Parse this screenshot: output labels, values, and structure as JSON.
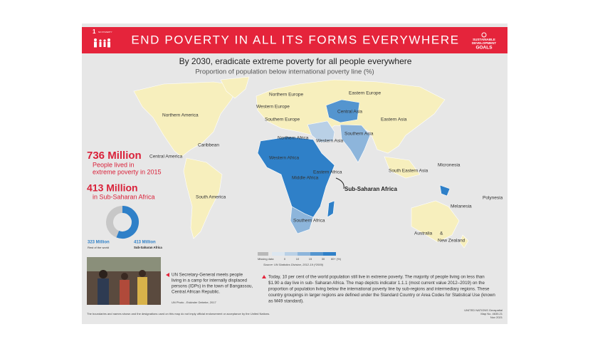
{
  "header": {
    "goal_number": "1",
    "goal_label": "NO POVERTY",
    "title": "END POVERTY IN ALL ITS FORMS EVERYWHERE",
    "sdg_logo": [
      "SUSTAINABLE",
      "DEVELOPMENT",
      "GOALS"
    ]
  },
  "subtitle": "By 2030, eradicate extreme poverty for all people everywhere",
  "subtitle2": "Proportion of population below international poverty line (%)",
  "regions": [
    "Northern America",
    "Caribbean",
    "Central America",
    "South America",
    "Northern Europe",
    "Western Europe",
    "Southern Europe",
    "Eastern Europe",
    "Central Asia",
    "Eastern Asia",
    "Northern Africa",
    "Western Asia",
    "Southern Asia",
    "Western Africa",
    "Middle Africa",
    "Eastern Africa",
    "Southern Africa",
    "Sub-Saharan Africa",
    "South Eastern Asia",
    "Micronesia",
    "Polynesia",
    "Melanesia",
    "Australia",
    "&",
    "New Zealand"
  ],
  "stats": {
    "world": "736 Million",
    "world_desc": [
      "People lived in",
      "extreme poverty in 2015"
    ],
    "ssa": "413 Million",
    "ssa_desc": "in Sub-Saharan Africa"
  },
  "donut": {
    "type": "pie",
    "values": [
      323,
      413
    ],
    "value_labels": [
      "323 Million",
      "413 Million"
    ],
    "categories": [
      "Rest of the world",
      "Sub-Saharan Africa"
    ],
    "colors": [
      "#c7c7c7",
      "#2f80c8"
    ]
  },
  "legend": {
    "labels": [
      "Missing data",
      "0",
      "10",
      "15",
      "30",
      "60+ (%)"
    ],
    "colors": [
      "#b9b9b9",
      "#dbe6f0",
      "#b9d0e6",
      "#8db5db",
      "#5495cf",
      "#2f80c8"
    ],
    "source": "Source: UN Statistics Division, 2012-19 (*2009)"
  },
  "photo_caption": [
    "UN Secretary-General meets people",
    "living in a camp for internally displaced",
    "persons (IDPs) in the town of Bangassou,",
    "Central African Republic."
  ],
  "photo_credit": "UN Photo - Eskinder Debebe, 2017",
  "note": [
    "Today, 10 per cent of the world population still live in extreme poverty. The majority of people living on less than",
    "$1.90 a day live in sub- Saharan Africa. The map depicts indicator 1.1.1 (most current value 2012–2019) on the",
    "proportion of population living below the international poverty line by sub-regions and intermediary regions. These",
    "country groupings in larger regions are defined under the Standard Country or Area Codes for Statistical Use (known",
    "as M49 standard)."
  ],
  "disclaimer": "The boundaries and names shown and the designations used on this map do not imply official endorsement or acceptance by the United Nations.",
  "footer": [
    "UNITED NATIONS Geospatial",
    "Map No. 4635.21",
    "Nov 2021"
  ]
}
